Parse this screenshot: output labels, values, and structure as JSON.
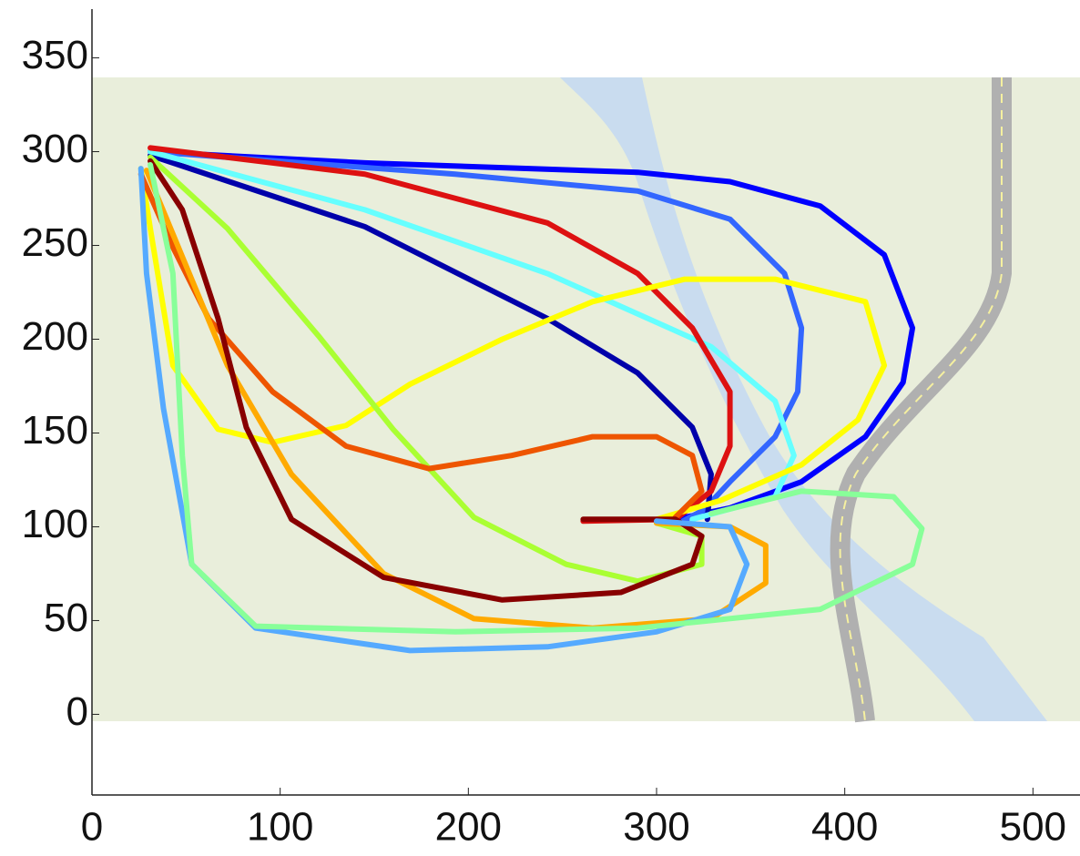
{
  "chart_data": {
    "type": "line",
    "xlim": [
      0,
      525
    ],
    "ylim": [
      -43,
      376
    ],
    "xticks": [
      0,
      100,
      200,
      300,
      400,
      500
    ],
    "yticks": [
      0,
      50,
      100,
      150,
      200,
      250,
      300,
      350
    ],
    "series": [
      {
        "color": "#0000ff",
        "x": [
          31,
          145,
          290,
          339,
          387,
          421,
          436,
          431,
          411,
          377,
          339,
          310
        ],
        "y": [
          300,
          294,
          289,
          284,
          271,
          245,
          206,
          177,
          148,
          124,
          110,
          104
        ]
      },
      {
        "color": "#3366ff",
        "x": [
          31,
          193,
          290,
          339,
          368,
          377,
          375,
          363,
          339,
          325,
          314
        ],
        "y": [
          300,
          288,
          279,
          264,
          235,
          206,
          172,
          148,
          124,
          109,
          103
        ]
      },
      {
        "color": "#0000aa",
        "x": [
          31,
          145,
          242,
          290,
          319,
          329,
          327
        ],
        "y": [
          298,
          260,
          211,
          182,
          153,
          128,
          104
        ]
      },
      {
        "color": "#66ffff",
        "x": [
          31,
          145,
          242,
          329,
          363,
          373,
          363,
          319
        ],
        "y": [
          300,
          269,
          235,
          196,
          167,
          138,
          116,
          104
        ]
      },
      {
        "color": "#dd1111",
        "x": [
          31,
          145,
          242,
          290,
          319,
          339,
          339,
          329,
          310,
          261
        ],
        "y": [
          302,
          288,
          262,
          235,
          206,
          172,
          143,
          119,
          104,
          103
        ]
      },
      {
        "color": "#ffff00",
        "x": [
          26,
          31,
          43,
          67,
          96,
          135,
          169,
          218,
          266,
          315,
          363,
          411,
          421,
          407,
          377,
          334,
          300
        ],
        "y": [
          291,
          259,
          186,
          152,
          145,
          154,
          176,
          200,
          220,
          232,
          232,
          220,
          186,
          157,
          133,
          114,
          104
        ]
      },
      {
        "color": "#aaff33",
        "x": [
          31,
          72,
          121,
          160,
          203,
          252,
          290,
          324,
          324,
          300
        ],
        "y": [
          297,
          259,
          201,
          152,
          105,
          80,
          71,
          80,
          95,
          102
        ]
      },
      {
        "color": "#ee5500",
        "x": [
          26,
          43,
          62,
          96,
          135,
          179,
          223,
          266,
          300,
          319,
          324,
          310
        ],
        "y": [
          288,
          249,
          211,
          172,
          143,
          131,
          138,
          148,
          148,
          138,
          119,
          105
        ]
      },
      {
        "color": "#ffaa00",
        "x": [
          29,
          48,
          72,
          106,
          155,
          203,
          266,
          329,
          358,
          358,
          339,
          300
        ],
        "y": [
          290,
          244,
          186,
          128,
          75,
          51,
          46,
          51,
          70,
          90,
          100,
          102
        ]
      },
      {
        "color": "#880000",
        "x": [
          31,
          48,
          67,
          82,
          106,
          155,
          218,
          281,
          319,
          324,
          310,
          261
        ],
        "y": [
          295,
          269,
          211,
          153,
          104,
          73,
          61,
          65,
          80,
          95,
          104,
          104
        ]
      },
      {
        "color": "#55aaff",
        "x": [
          26,
          29,
          38,
          53,
          87,
          169,
          242,
          300,
          339,
          348,
          339,
          300
        ],
        "y": [
          291,
          235,
          163,
          80,
          46,
          34,
          36,
          44,
          56,
          80,
          100,
          103
        ]
      },
      {
        "color": "#88ff99",
        "x": [
          31,
          43,
          48,
          53,
          87,
          193,
          290,
          387,
          436,
          441,
          426,
          377,
          329
        ],
        "y": [
          293,
          235,
          138,
          80,
          47,
          44,
          46,
          56,
          80,
          99,
          116,
          119,
          107
        ]
      }
    ]
  }
}
